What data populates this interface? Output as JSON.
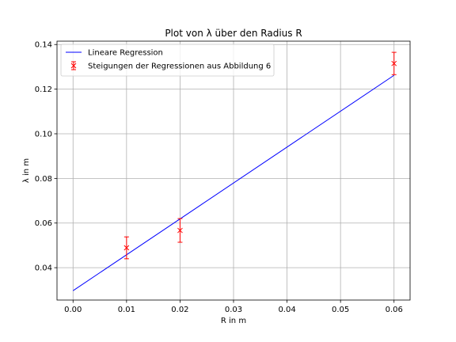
{
  "chart_data": {
    "type": "scatter",
    "title": "Plot von λ über den Radius R",
    "xlabel": "R in m",
    "ylabel": "λ in m",
    "xlim": [
      -0.003,
      0.063
    ],
    "ylim": [
      0.0255,
      0.1415
    ],
    "x_ticks": [
      0.0,
      0.01,
      0.02,
      0.03,
      0.04,
      0.05,
      0.06
    ],
    "x_tick_labels": [
      "0.00",
      "0.01",
      "0.02",
      "0.03",
      "0.04",
      "0.05",
      "0.06"
    ],
    "y_ticks": [
      0.04,
      0.06,
      0.08,
      0.1,
      0.12,
      0.14
    ],
    "y_tick_labels": [
      "0.04",
      "0.06",
      "0.08",
      "0.10",
      "0.12",
      "0.14"
    ],
    "grid": true,
    "legend_position": "top-left",
    "series": [
      {
        "name": "Lineare Regression",
        "kind": "line",
        "color": "#0000ff",
        "x": [
          0.0,
          0.06
        ],
        "y": [
          0.0297,
          0.1262
        ]
      },
      {
        "name": "Steigungen der Regressionen aus Abbildung 6",
        "kind": "errorbar",
        "color": "#ff0000",
        "marker": "x",
        "x": [
          0.01,
          0.02,
          0.06
        ],
        "y": [
          0.0489,
          0.0567,
          0.1315
        ],
        "yerr": [
          0.0049,
          0.0053,
          0.005
        ]
      }
    ]
  }
}
